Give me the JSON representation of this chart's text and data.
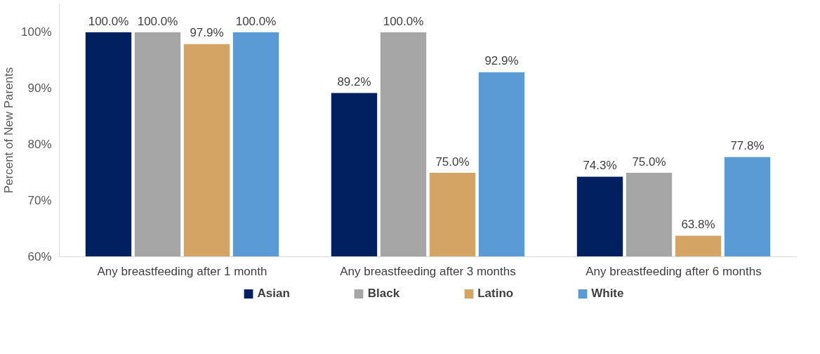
{
  "chart_data": {
    "type": "bar",
    "ylabel": "Percent of New Parents",
    "categories": [
      "Any breastfeeding after 1 month",
      "Any breastfeeding after 3 months",
      "Any breastfeeding after 6 months"
    ],
    "ylim": [
      60,
      105
    ],
    "yticks": [
      {
        "value": 60,
        "label": "60%"
      },
      {
        "value": 70,
        "label": "70%"
      },
      {
        "value": 80,
        "label": "80%"
      },
      {
        "value": 90,
        "label": "90%"
      },
      {
        "value": 100,
        "label": "100%"
      }
    ],
    "grid": false,
    "legend": "bottom",
    "series": [
      {
        "name": "Asian",
        "color": "#002060",
        "values": [
          100.0,
          89.2,
          74.3
        ],
        "value_labels": [
          "100.0%",
          "89.2%",
          "74.3%"
        ]
      },
      {
        "name": "Black",
        "color": "#a6a6a6",
        "values": [
          100.0,
          100.0,
          75.0
        ],
        "value_labels": [
          "100.0%",
          "100.0%",
          "75.0%"
        ]
      },
      {
        "name": "Latino",
        "color": "#d4a464",
        "values": [
          97.9,
          75.0,
          63.8
        ],
        "value_labels": [
          "97.9%",
          "75.0%",
          "63.8%"
        ]
      },
      {
        "name": "White",
        "color": "#5b9bd5",
        "values": [
          100.0,
          92.9,
          77.8
        ],
        "value_labels": [
          "100.0%",
          "92.9%",
          "77.8%"
        ]
      }
    ]
  }
}
